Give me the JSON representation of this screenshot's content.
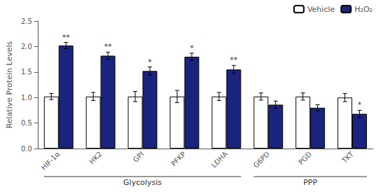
{
  "chart_data": {
    "type": "bar",
    "categories": [
      "HIF-1α",
      "HK2",
      "GPI",
      "PFKP",
      "LDHA",
      "G6PD",
      "PGD",
      "TKT"
    ],
    "series": [
      {
        "name": "Vehicle",
        "color": "#ffffff",
        "values": [
          1.02,
          1.02,
          1.02,
          1.02,
          1.02,
          1.02,
          1.02,
          1.0
        ],
        "errors": [
          0.06,
          0.08,
          0.1,
          0.12,
          0.08,
          0.07,
          0.07,
          0.08
        ]
      },
      {
        "name": "H₂O₂",
        "color": "#1a237e",
        "values": [
          2.02,
          1.82,
          1.52,
          1.8,
          1.55,
          0.86,
          0.8,
          0.68
        ],
        "errors": [
          0.06,
          0.07,
          0.08,
          0.07,
          0.08,
          0.07,
          0.06,
          0.07
        ],
        "significance": [
          "**",
          "**",
          "*",
          "*",
          "**",
          null,
          null,
          "*"
        ]
      }
    ],
    "groups": [
      {
        "label": "Glycolysis",
        "categories": [
          "HIF-1α",
          "HK2",
          "GPI",
          "PFKP",
          "LDHA"
        ]
      },
      {
        "label": "PPP",
        "categories": [
          "G6PD",
          "PGD",
          "TKT"
        ]
      }
    ],
    "ylabel": "Relative Protein Levels",
    "ylim": [
      0,
      2.5
    ],
    "yticks": [
      {
        "value": 0,
        "label": "0.0"
      },
      0.5,
      {
        "value": 1.0,
        "label": "1.0"
      },
      1.5,
      {
        "value": 2.0,
        "label": "2.0"
      },
      2.5
    ],
    "legend": "upper right",
    "grid": false
  }
}
